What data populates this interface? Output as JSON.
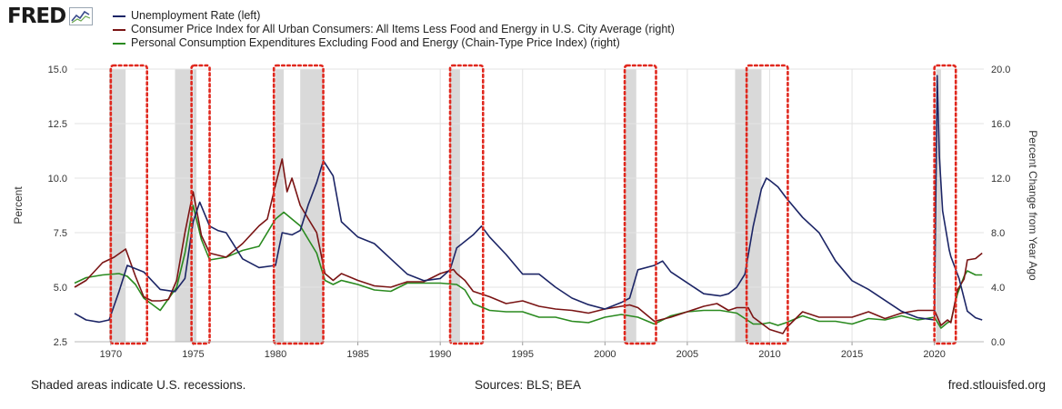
{
  "brand": {
    "logo_text": "FRED",
    "logo_icon": "chart-line-icon"
  },
  "colors": {
    "unrate": "#1c2566",
    "cpi": "#7a1414",
    "pce": "#2a8a1f",
    "recession": "#d9d9d9",
    "highlight": "#e0281e",
    "grid": "#e3e3e3"
  },
  "legend": [
    {
      "label": "Unemployment Rate (left)",
      "color": "#1c2566"
    },
    {
      "label": "Consumer Price Index for All Urban Consumers: All Items Less Food and Energy in U.S. City Average (right)",
      "color": "#7a1414"
    },
    {
      "label": "Personal Consumption Expenditures Excluding Food and Energy (Chain-Type Price Index) (right)",
      "color": "#2a8a1f"
    }
  ],
  "footer": {
    "note": "Shaded areas indicate U.S. recessions.",
    "sources": "Sources: BLS; BEA",
    "site": "fred.stlouisfed.org"
  },
  "chart_data": {
    "type": "line",
    "title": "",
    "xlabel": "",
    "ylabel": "Percent",
    "ylabel_right": "Percent Change from Year Ago",
    "xlim": [
      1967.8,
      2023.0
    ],
    "ylim": [
      2.5,
      15.0
    ],
    "ylim_right": [
      0.0,
      20.0
    ],
    "x_ticks": [
      "1970",
      "1975",
      "1980",
      "1985",
      "1990",
      "1995",
      "2000",
      "2005",
      "2010",
      "2015",
      "2020"
    ],
    "y_ticks": [
      "2.5",
      "5.0",
      "7.5",
      "10.0",
      "12.5",
      "15.0"
    ],
    "y_ticks_right": [
      "0.0",
      "4.0",
      "8.0",
      "12.0",
      "16.0",
      "20.0"
    ],
    "recessions": [
      [
        1969.9,
        1970.9
      ],
      [
        1973.9,
        1975.2
      ],
      [
        1980.0,
        1980.5
      ],
      [
        1981.5,
        1982.9
      ],
      [
        1990.6,
        1991.2
      ],
      [
        2001.2,
        2001.9
      ],
      [
        2007.9,
        2009.5
      ],
      [
        2020.1,
        2020.4
      ]
    ],
    "highlights": [
      [
        1970.0,
        1972.2
      ],
      [
        1974.9,
        1976.0
      ],
      [
        1979.9,
        1982.9
      ],
      [
        1990.6,
        1992.6
      ],
      [
        2001.2,
        2003.1
      ],
      [
        2008.6,
        2011.1
      ],
      [
        2020.0,
        2021.3
      ]
    ],
    "series": [
      {
        "name": "Unemployment Rate (left)",
        "axis": "left",
        "x": [
          1967.8,
          1968.5,
          1969.3,
          1969.9,
          1970.5,
          1971.0,
          1972.0,
          1973.0,
          1973.9,
          1974.5,
          1975.0,
          1975.4,
          1976.0,
          1976.5,
          1977.0,
          1978.0,
          1979.0,
          1980.0,
          1980.4,
          1981.0,
          1981.5,
          1982.0,
          1982.5,
          1982.9,
          1983.5,
          1984.0,
          1985.0,
          1986.0,
          1987.0,
          1988.0,
          1989.0,
          1990.0,
          1990.6,
          1991.0,
          1992.0,
          1992.5,
          1993.0,
          1994.0,
          1995.0,
          1996.0,
          1997.0,
          1998.0,
          1999.0,
          2000.0,
          2001.0,
          2001.5,
          2002.0,
          2003.0,
          2003.5,
          2004.0,
          2005.0,
          2006.0,
          2007.0,
          2007.5,
          2008.0,
          2008.5,
          2009.0,
          2009.5,
          2009.8,
          2010.0,
          2010.5,
          2011.0,
          2012.0,
          2013.0,
          2014.0,
          2015.0,
          2016.0,
          2017.0,
          2018.0,
          2019.0,
          2020.0,
          2020.17,
          2020.3,
          2020.5,
          2020.9,
          2021.0,
          2021.5,
          2022.0,
          2022.5,
          2022.9
        ],
        "values": [
          3.8,
          3.5,
          3.4,
          3.5,
          4.8,
          6.0,
          5.7,
          4.9,
          4.8,
          5.4,
          8.0,
          8.9,
          7.8,
          7.6,
          7.5,
          6.3,
          5.9,
          6.0,
          7.5,
          7.4,
          7.6,
          8.8,
          9.8,
          10.8,
          10.1,
          8.0,
          7.3,
          7.0,
          6.3,
          5.6,
          5.3,
          5.4,
          5.8,
          6.8,
          7.4,
          7.8,
          7.3,
          6.5,
          5.6,
          5.6,
          5.0,
          4.5,
          4.2,
          4.0,
          4.3,
          4.5,
          5.8,
          6.0,
          6.2,
          5.7,
          5.2,
          4.7,
          4.6,
          4.7,
          5.0,
          5.6,
          7.8,
          9.5,
          10.0,
          9.9,
          9.6,
          9.1,
          8.2,
          7.5,
          6.2,
          5.3,
          4.9,
          4.4,
          3.9,
          3.6,
          3.5,
          14.7,
          11.0,
          8.5,
          6.7,
          6.4,
          5.4,
          3.9,
          3.6,
          3.5
        ]
      },
      {
        "name": "Consumer Price Index for All Urban Consumers: All Items Less Food and Energy in U.S. City Average (right)",
        "axis": "right",
        "x": [
          1967.8,
          1968.5,
          1969.5,
          1970.2,
          1970.9,
          1971.5,
          1972.0,
          1972.5,
          1973.0,
          1973.5,
          1974.0,
          1974.5,
          1975.0,
          1975.5,
          1976.0,
          1977.0,
          1978.0,
          1979.0,
          1979.5,
          1980.0,
          1980.4,
          1980.7,
          1981.0,
          1981.5,
          1982.0,
          1982.5,
          1983.0,
          1983.5,
          1984.0,
          1985.0,
          1986.0,
          1987.0,
          1988.0,
          1989.0,
          1990.0,
          1990.8,
          1991.0,
          1991.5,
          1992.0,
          1993.0,
          1994.0,
          1995.0,
          1996.0,
          1997.0,
          1998.0,
          1999.0,
          2000.0,
          2001.0,
          2001.5,
          2002.0,
          2003.0,
          2004.0,
          2005.0,
          2006.0,
          2006.8,
          2007.5,
          2008.0,
          2008.7,
          2009.0,
          2010.0,
          2010.8,
          2011.0,
          2012.0,
          2013.0,
          2014.0,
          2015.0,
          2016.0,
          2017.0,
          2018.0,
          2019.0,
          2020.0,
          2020.4,
          2020.8,
          2021.0,
          2021.4,
          2021.8,
          2022.0,
          2022.5,
          2022.9
        ],
        "values": [
          4.0,
          4.5,
          5.8,
          6.2,
          6.8,
          4.8,
          3.3,
          3.0,
          3.0,
          3.1,
          4.5,
          8.0,
          11.0,
          7.8,
          6.5,
          6.2,
          7.2,
          8.5,
          9.0,
          11.5,
          13.4,
          11.0,
          12.0,
          10.0,
          9.0,
          8.0,
          5.0,
          4.5,
          5.0,
          4.5,
          4.1,
          4.0,
          4.4,
          4.4,
          5.0,
          5.3,
          5.0,
          4.5,
          3.7,
          3.3,
          2.8,
          3.0,
          2.6,
          2.4,
          2.3,
          2.1,
          2.4,
          2.6,
          2.7,
          2.5,
          1.5,
          1.8,
          2.2,
          2.6,
          2.8,
          2.3,
          2.5,
          2.5,
          1.8,
          0.9,
          0.6,
          1.0,
          2.2,
          1.8,
          1.8,
          1.8,
          2.2,
          1.7,
          2.1,
          2.3,
          2.3,
          1.2,
          1.6,
          1.4,
          3.8,
          4.6,
          6.0,
          6.1,
          6.5
        ]
      },
      {
        "name": "Personal Consumption Expenditures Excluding Food and Energy (Chain-Type Price Index) (right)",
        "axis": "right",
        "x": [
          1967.8,
          1968.5,
          1969.5,
          1970.5,
          1971.0,
          1971.5,
          1972.0,
          1973.0,
          1974.0,
          1974.5,
          1975.0,
          1975.5,
          1976.0,
          1977.0,
          1978.0,
          1979.0,
          1980.0,
          1980.5,
          1981.0,
          1981.5,
          1982.0,
          1982.5,
          1983.0,
          1983.5,
          1984.0,
          1985.0,
          1986.0,
          1987.0,
          1988.0,
          1989.0,
          1990.0,
          1991.0,
          1991.5,
          1992.0,
          1993.0,
          1994.0,
          1995.0,
          1996.0,
          1997.0,
          1998.0,
          1999.0,
          2000.0,
          2001.0,
          2002.0,
          2003.0,
          2004.0,
          2005.0,
          2006.0,
          2007.0,
          2008.0,
          2009.0,
          2009.5,
          2010.0,
          2010.5,
          2011.0,
          2012.0,
          2013.0,
          2014.0,
          2015.0,
          2016.0,
          2017.0,
          2018.0,
          2019.0,
          2020.0,
          2020.4,
          2020.8,
          2021.0,
          2021.4,
          2021.8,
          2022.0,
          2022.5,
          2022.9
        ],
        "values": [
          4.3,
          4.7,
          4.9,
          5.0,
          4.8,
          4.2,
          3.2,
          2.3,
          4.0,
          6.5,
          10.0,
          7.5,
          6.0,
          6.2,
          6.7,
          7.0,
          9.0,
          9.5,
          9.0,
          8.5,
          7.5,
          6.5,
          4.5,
          4.2,
          4.5,
          4.2,
          3.8,
          3.7,
          4.3,
          4.3,
          4.3,
          4.2,
          3.8,
          2.8,
          2.3,
          2.2,
          2.2,
          1.8,
          1.8,
          1.5,
          1.4,
          1.8,
          2.0,
          1.8,
          1.3,
          1.9,
          2.2,
          2.3,
          2.3,
          2.1,
          1.3,
          1.3,
          1.4,
          1.2,
          1.4,
          1.9,
          1.5,
          1.5,
          1.3,
          1.7,
          1.6,
          1.9,
          1.6,
          1.8,
          1.0,
          1.4,
          1.5,
          3.5,
          4.8,
          5.2,
          4.9,
          4.9
        ]
      }
    ]
  }
}
